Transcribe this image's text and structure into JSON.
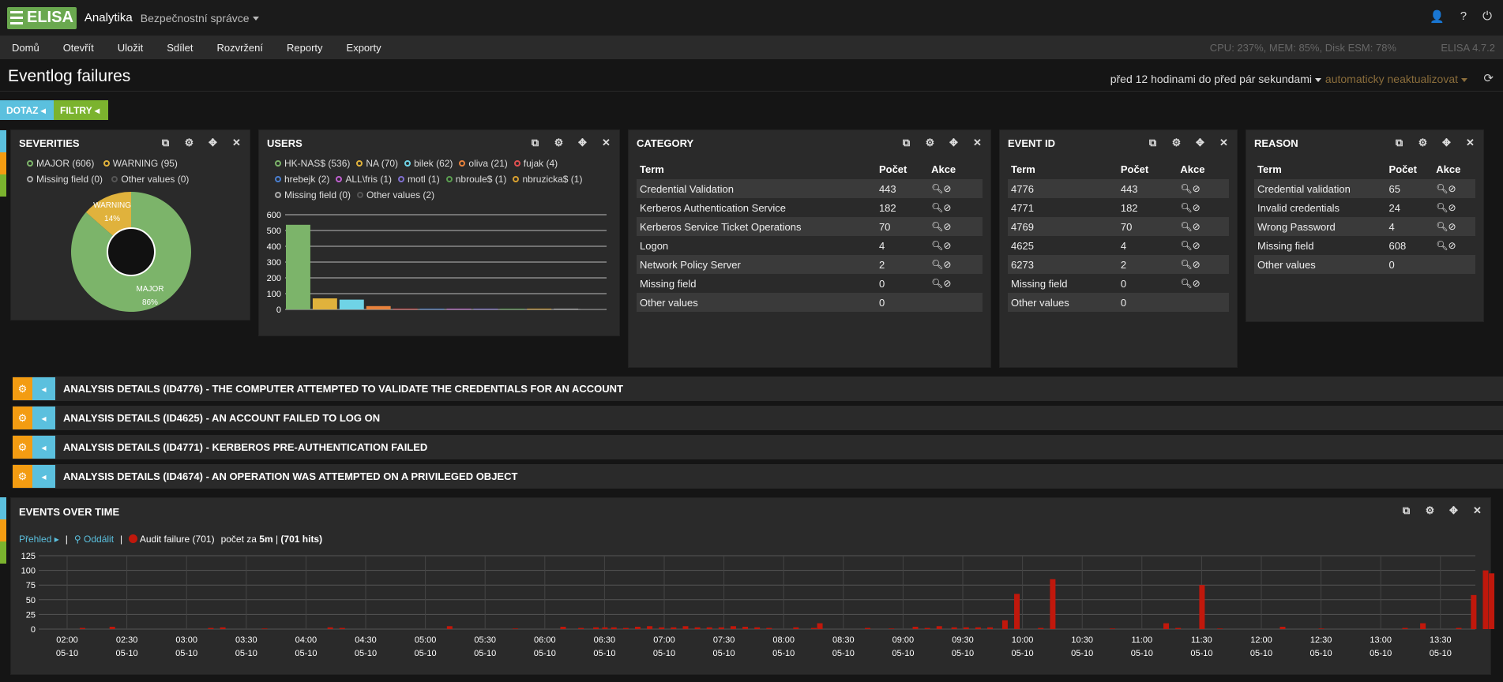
{
  "app": {
    "logo": "ELISA",
    "brand": "Analytika",
    "role": "Bezpečnostní správce"
  },
  "menu": [
    "Domů",
    "Otevřít",
    "Uložit",
    "Sdílet",
    "Rozvržení",
    "Reporty",
    "Exporty"
  ],
  "stats": "CPU: 237%, MEM: 85%, Disk ESM: 78%",
  "version": "ELISA 4.7.2",
  "page_title": "Eventlog failures",
  "timerange": "před 12 hodinami do před pár sekundami",
  "autorefresh": "automaticky neaktualizovat",
  "query_btn": "DOTAZ",
  "filter_btn": "FILTRY",
  "colors": {
    "green": "#6aa84f",
    "yellow": "#e0b23c",
    "blue": "#5bc0de",
    "orange": "#f39c12",
    "red": "#b71c1c"
  },
  "severities": {
    "title": "SEVERITIES",
    "legend": [
      {
        "label": "MAJOR (606)",
        "color": "#7cb46a"
      },
      {
        "label": "WARNING (95)",
        "color": "#e0b23c"
      },
      {
        "label": "Missing field (0)",
        "color": "#aaaaaa"
      },
      {
        "label": "Other values (0)",
        "color": "#555555"
      }
    ],
    "slices": [
      {
        "label": "WARNING",
        "pct": "14%",
        "value": 95,
        "color": "#e0b23c"
      },
      {
        "label": "MAJOR",
        "pct": "86%",
        "value": 606,
        "color": "#7cb46a"
      }
    ]
  },
  "users": {
    "title": "USERS",
    "legend": [
      {
        "label": "HK-NAS$ (536)",
        "color": "#7cb46a"
      },
      {
        "label": "NA (70)",
        "color": "#e0b23c"
      },
      {
        "label": "bilek (62)",
        "color": "#6fd3e6"
      },
      {
        "label": "oliva (21)",
        "color": "#e8823c"
      },
      {
        "label": "fujak (4)",
        "color": "#e05050"
      },
      {
        "label": "hrebejk (2)",
        "color": "#4a7fd0"
      },
      {
        "label": "ALL\\fris (1)",
        "color": "#c060d0"
      },
      {
        "label": "motl (1)",
        "color": "#8070d0"
      },
      {
        "label": "nbroule$ (1)",
        "color": "#5a9e50"
      },
      {
        "label": "nbruzicka$ (1)",
        "color": "#d8a030"
      },
      {
        "label": "Missing field (0)",
        "color": "#aaaaaa"
      },
      {
        "label": "Other values (2)",
        "color": "#555555"
      }
    ],
    "chart_data": {
      "type": "bar",
      "categories": [
        "HK-NAS$",
        "NA",
        "bilek",
        "oliva",
        "fujak",
        "hrebejk",
        "ALL\\fris",
        "motl",
        "nbroule$",
        "nbruzicka$",
        "Missing field",
        "Other values"
      ],
      "values": [
        536,
        70,
        62,
        21,
        4,
        2,
        1,
        1,
        1,
        1,
        0,
        2
      ],
      "colors": [
        "#7cb46a",
        "#e0b23c",
        "#6fd3e6",
        "#e8823c",
        "#e05050",
        "#4a7fd0",
        "#c060d0",
        "#8070d0",
        "#5a9e50",
        "#d8a030",
        "#aaaaaa",
        "#666666"
      ],
      "yticks": [
        "0",
        "100",
        "200",
        "300",
        "400",
        "500",
        "600"
      ],
      "ylim": [
        0,
        600
      ]
    }
  },
  "category": {
    "title": "CATEGORY",
    "headers": [
      "Term",
      "Počet",
      "Akce"
    ],
    "rows": [
      {
        "term": "Credential Validation",
        "count": "443",
        "act": true
      },
      {
        "term": "Kerberos Authentication Service",
        "count": "182",
        "act": true
      },
      {
        "term": "Kerberos Service Ticket Operations",
        "count": "70",
        "act": true
      },
      {
        "term": "Logon",
        "count": "4",
        "act": true
      },
      {
        "term": "Network Policy Server",
        "count": "2",
        "act": true
      },
      {
        "term": "Missing field",
        "count": "0",
        "act": true
      },
      {
        "term": "Other values",
        "count": "0",
        "act": false
      }
    ]
  },
  "eventid": {
    "title": "EVENT ID",
    "headers": [
      "Term",
      "Počet",
      "Akce"
    ],
    "rows": [
      {
        "term": "4776",
        "count": "443",
        "act": true
      },
      {
        "term": "4771",
        "count": "182",
        "act": true
      },
      {
        "term": "4769",
        "count": "70",
        "act": true
      },
      {
        "term": "4625",
        "count": "4",
        "act": true
      },
      {
        "term": "6273",
        "count": "2",
        "act": true
      },
      {
        "term": "Missing field",
        "count": "0",
        "act": true
      },
      {
        "term": "Other values",
        "count": "0",
        "act": false
      }
    ]
  },
  "reason": {
    "title": "REASON",
    "headers": [
      "Term",
      "Počet",
      "Akce"
    ],
    "rows": [
      {
        "term": "Credential validation",
        "count": "65",
        "act": true
      },
      {
        "term": "Invalid credentials",
        "count": "24",
        "act": true
      },
      {
        "term": "Wrong Password",
        "count": "4",
        "act": true
      },
      {
        "term": "Missing field",
        "count": "608",
        "act": true
      },
      {
        "term": "Other values",
        "count": "0",
        "act": false
      }
    ]
  },
  "analysis": [
    "ANALYSIS DETAILS (ID4776) - THE COMPUTER ATTEMPTED TO VALIDATE THE CREDENTIALS FOR AN ACCOUNT",
    "ANALYSIS DETAILS (ID4625) - AN ACCOUNT FAILED TO LOG ON",
    "ANALYSIS DETAILS (ID4771) - KERBEROS PRE-AUTHENTICATION FAILED",
    "ANALYSIS DETAILS (ID4674) - AN OPERATION WAS ATTEMPTED ON A PRIVILEGED OBJECT"
  ],
  "events": {
    "title": "EVENTS OVER TIME",
    "overview": "Přehled",
    "zoom": "Oddálit",
    "series_label": "Audit failure (701)",
    "count_text": "počet za",
    "interval": "5m",
    "hits": "(701 hits)",
    "chart_data": {
      "type": "bar",
      "series": [
        {
          "name": "Audit failure",
          "color": "#c0180c"
        }
      ],
      "yticks": [
        "0",
        "25",
        "50",
        "75",
        "100",
        "125"
      ],
      "ylim": [
        0,
        125
      ],
      "xlabels": [
        "02:00",
        "02:30",
        "03:00",
        "03:30",
        "04:00",
        "04:30",
        "05:00",
        "05:30",
        "06:00",
        "06:30",
        "07:00",
        "07:30",
        "08:00",
        "08:30",
        "09:00",
        "09:30",
        "10:00",
        "10:30",
        "11:00",
        "11:30",
        "12:00",
        "12:30",
        "13:00",
        "13:30"
      ],
      "xdate": "05-10",
      "bars": [
        [
          0.25,
          2
        ],
        [
          0.75,
          4
        ],
        [
          2.4,
          2
        ],
        [
          2.6,
          3
        ],
        [
          3.3,
          1
        ],
        [
          4.4,
          3
        ],
        [
          4.6,
          2
        ],
        [
          6.4,
          5
        ],
        [
          7.5,
          1
        ],
        [
          8.3,
          4
        ],
        [
          8.6,
          2
        ],
        [
          8.85,
          3
        ],
        [
          9.0,
          3
        ],
        [
          9.15,
          3
        ],
        [
          9.35,
          2
        ],
        [
          9.55,
          4
        ],
        [
          9.75,
          5
        ],
        [
          9.95,
          3
        ],
        [
          10.15,
          3
        ],
        [
          10.35,
          5
        ],
        [
          10.55,
          3
        ],
        [
          10.75,
          3
        ],
        [
          10.95,
          3
        ],
        [
          11.15,
          5
        ],
        [
          11.35,
          4
        ],
        [
          11.55,
          3
        ],
        [
          11.75,
          2
        ],
        [
          12.2,
          3
        ],
        [
          12.5,
          2
        ],
        [
          12.6,
          10
        ],
        [
          13.4,
          2
        ],
        [
          13.8,
          1
        ],
        [
          14.2,
          4
        ],
        [
          14.4,
          2
        ],
        [
          14.6,
          5
        ],
        [
          14.85,
          3
        ],
        [
          15.05,
          3
        ],
        [
          15.25,
          3
        ],
        [
          15.45,
          3
        ],
        [
          15.7,
          15
        ],
        [
          15.9,
          60
        ],
        [
          16.3,
          2
        ],
        [
          16.5,
          85
        ],
        [
          17.5,
          1
        ],
        [
          18.4,
          10
        ],
        [
          18.6,
          2
        ],
        [
          19.0,
          75
        ],
        [
          19.3,
          1
        ],
        [
          20.35,
          4
        ],
        [
          21.0,
          1
        ],
        [
          22.4,
          2
        ],
        [
          22.7,
          10
        ],
        [
          23.3,
          2
        ],
        [
          23.55,
          58
        ],
        [
          23.75,
          100
        ],
        [
          23.85,
          95
        ]
      ]
    }
  }
}
